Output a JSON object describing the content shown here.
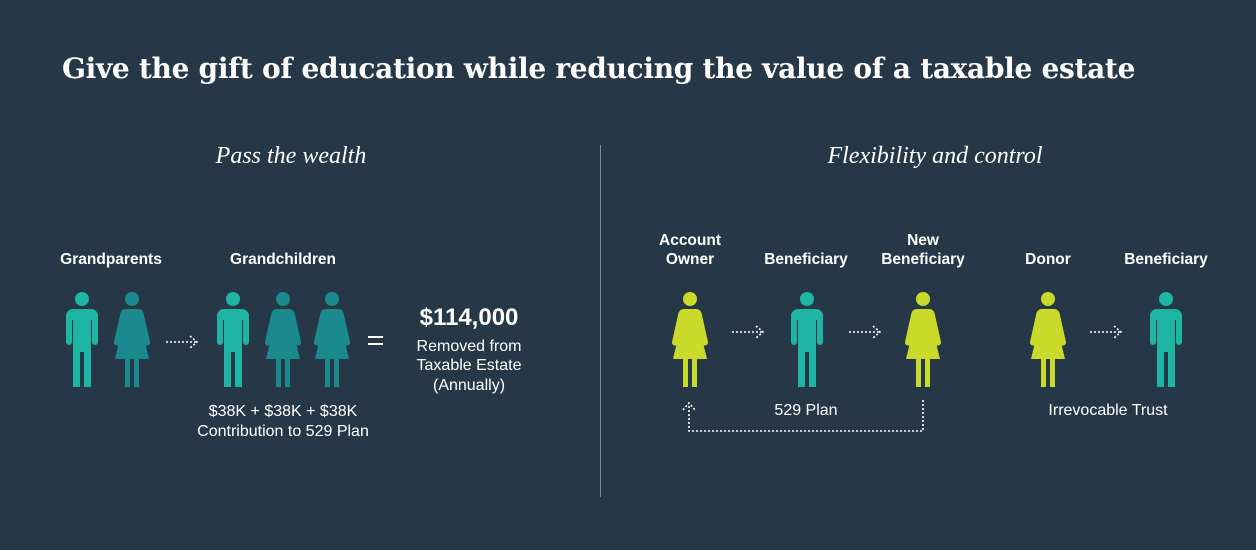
{
  "title": "Give the gift of education while reducing the value of a taxable estate",
  "colors": {
    "background": "#263747",
    "teal": "#1fb5a5",
    "dark_teal": "#1a8a8e",
    "lime": "#c9da2b",
    "divider": "#7d8b97"
  },
  "left": {
    "heading": "Pass the wealth",
    "grandparents_label": "Grandparents",
    "grandchildren_label": "Grandchildren",
    "contribution_line1": "$38K + $38K + $38K",
    "contribution_line2": "Contribution to 529 Plan",
    "equals": "=",
    "amount": "$114,000",
    "removed_line1": "Removed from",
    "removed_line2": "Taxable Estate",
    "removed_line3": "(Annually)"
  },
  "right": {
    "heading": "Flexibility and control",
    "account_owner_line1": "Account",
    "account_owner_line2": "Owner",
    "beneficiary_label": "Beneficiary",
    "new_beneficiary_line1": "New",
    "new_beneficiary_line2": "Beneficiary",
    "plan_label": "529 Plan",
    "donor_label": "Donor",
    "trust_beneficiary_label": "Beneficiary",
    "trust_label": "Irrevocable Trust"
  }
}
